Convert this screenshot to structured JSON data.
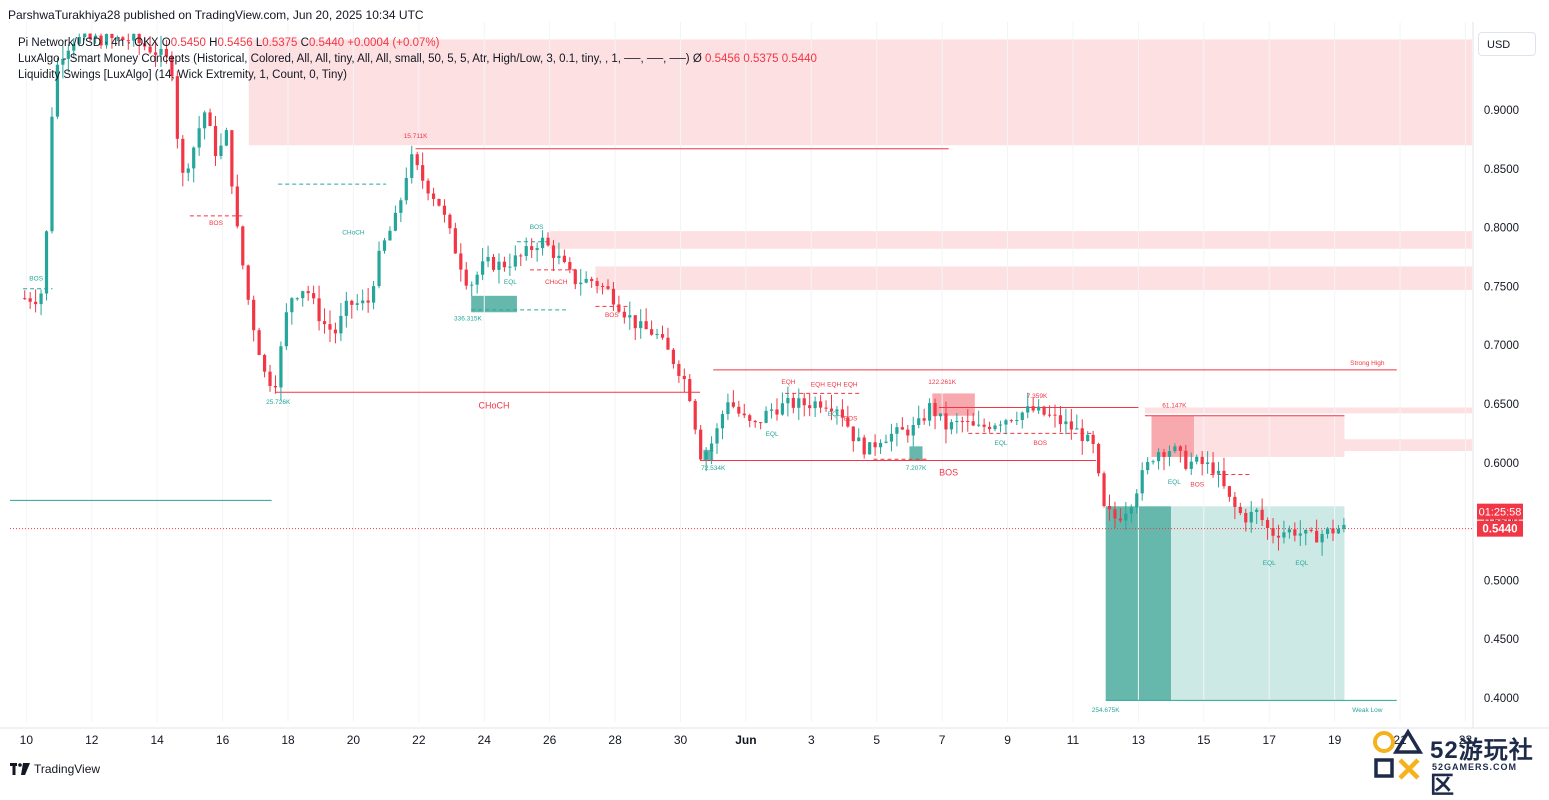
{
  "header": {
    "publish_line": "ParshwaTurakhiya28 published on TradingView.com, Jun 20, 2025 10:34 UTC"
  },
  "legend": {
    "symbol": "Pi Network/USD · 4h · OKX",
    "o_label": "O",
    "o": "0.5450",
    "h_label": "H",
    "h": "0.5456",
    "l_label": "L",
    "l": "0.5375",
    "c_label": "C",
    "c": "0.5440",
    "change": "+0.0004 (+0.07%)",
    "indicator1": "LuxAlgo - Smart Money Concepts (Historical, Colored, All, All, tiny, All, All, small, 50, 5, 5, Atr, High/Low, 3, 0.1, tiny, , 1, ──, ──, ──)",
    "indicator1_sep": "Ø",
    "indicator1_values": "0.5456  0.5375  0.5440",
    "indicator2": "Liquidity Swings [LuxAlgo] (14, Wick Extremity, 1, Count, 0, Tiny)"
  },
  "currency_button": "USD",
  "branding": "TradingView",
  "watermark": {
    "text": "52游玩社区",
    "sub": "52GAMERS.COM"
  },
  "colors": {
    "up": "#26a69a",
    "down": "#f23645",
    "bear_zone": "#fde0e2",
    "bull_zone": "#66b8ad",
    "bull_zone_light": "#cde9e6",
    "price_line": "#f23645"
  },
  "chart_data": {
    "type": "candlestick",
    "y_axis": {
      "ticks": [
        0.9,
        0.85,
        0.8,
        0.75,
        0.7,
        0.65,
        0.6,
        0.55,
        0.5,
        0.45,
        0.4
      ],
      "tick_labels": [
        "0.9000",
        "0.8500",
        "0.8000",
        "0.7500",
        "0.7000",
        "0.6500",
        "0.6000",
        "0.5500",
        "0.5000",
        "0.4500",
        "0.4000"
      ],
      "range": [
        0.385,
        0.96
      ],
      "side": "right"
    },
    "x_axis": {
      "tick_labels": [
        "10",
        "12",
        "14",
        "16",
        "18",
        "20",
        "22",
        "24",
        "26",
        "28",
        "30",
        "Jun",
        "3",
        "5",
        "7",
        "9",
        "11",
        "13",
        "15",
        "17",
        "19",
        "21",
        "23"
      ],
      "range_days": [
        9.5,
        24.2
      ]
    },
    "current_price": {
      "value": 0.544,
      "label": "0.5440",
      "countdown": "01:25:58"
    },
    "anchors": [
      [
        9.95,
        0.74
      ],
      [
        10.6,
        0.74
      ],
      [
        10.8,
        0.8
      ],
      [
        11.0,
        0.93
      ],
      [
        11.3,
        0.95
      ],
      [
        11.6,
        0.96
      ],
      [
        12.0,
        0.96
      ],
      [
        12.4,
        0.96
      ],
      [
        12.9,
        0.96
      ],
      [
        13.4,
        0.96
      ],
      [
        14.1,
        0.95
      ],
      [
        14.6,
        0.94
      ],
      [
        14.9,
        0.84
      ],
      [
        15.3,
        0.87
      ],
      [
        15.6,
        0.9
      ],
      [
        16.0,
        0.86
      ],
      [
        16.3,
        0.88
      ],
      [
        16.6,
        0.8
      ],
      [
        17.0,
        0.73
      ],
      [
        17.5,
        0.67
      ],
      [
        17.8,
        0.67
      ],
      [
        18.2,
        0.74
      ],
      [
        18.7,
        0.75
      ],
      [
        19.2,
        0.72
      ],
      [
        19.6,
        0.71
      ],
      [
        20.0,
        0.735
      ],
      [
        20.6,
        0.735
      ],
      [
        21.0,
        0.78
      ],
      [
        21.5,
        0.81
      ],
      [
        21.9,
        0.86
      ],
      [
        22.3,
        0.84
      ],
      [
        22.8,
        0.82
      ],
      [
        23.3,
        0.78
      ],
      [
        23.7,
        0.75
      ],
      [
        24.2,
        0.77
      ],
      [
        24.7,
        0.768
      ],
      [
        25.3,
        0.775
      ],
      [
        25.9,
        0.79
      ],
      [
        26.4,
        0.775
      ],
      [
        26.9,
        0.755
      ],
      [
        27.5,
        0.755
      ],
      [
        28.0,
        0.745
      ],
      [
        28.4,
        0.73
      ],
      [
        28.9,
        0.715
      ],
      [
        29.4,
        0.71
      ],
      [
        30.0,
        0.685
      ],
      [
        30.4,
        0.665
      ],
      [
        30.8,
        0.605
      ],
      [
        31.2,
        0.62
      ],
      [
        31.6,
        0.655
      ],
      [
        32.0,
        0.64
      ],
      [
        32.4,
        0.63
      ],
      [
        32.9,
        0.645
      ],
      [
        33.5,
        0.65
      ],
      [
        34.0,
        0.65
      ],
      [
        34.5,
        0.652
      ],
      [
        35.0,
        0.648
      ],
      [
        35.5,
        0.62
      ],
      [
        35.9,
        0.61
      ],
      [
        36.3,
        0.622
      ],
      [
        36.8,
        0.625
      ],
      [
        37.4,
        0.63
      ],
      [
        37.8,
        0.648
      ],
      [
        38.3,
        0.63
      ],
      [
        38.8,
        0.635
      ],
      [
        39.2,
        0.628
      ],
      [
        39.8,
        0.635
      ],
      [
        40.3,
        0.64
      ],
      [
        40.9,
        0.645
      ],
      [
        41.4,
        0.64
      ],
      [
        41.9,
        0.633
      ],
      [
        42.4,
        0.625
      ],
      [
        42.8,
        0.612
      ],
      [
        43.1,
        0.56
      ],
      [
        43.5,
        0.552
      ],
      [
        43.9,
        0.565
      ],
      [
        44.3,
        0.59
      ],
      [
        44.7,
        0.61
      ],
      [
        45.2,
        0.612
      ],
      [
        45.6,
        0.6
      ],
      [
        46.0,
        0.6
      ],
      [
        46.5,
        0.595
      ],
      [
        47.0,
        0.565
      ],
      [
        47.4,
        0.553
      ],
      [
        47.8,
        0.558
      ],
      [
        48.2,
        0.54
      ],
      [
        48.6,
        0.542
      ],
      [
        49.0,
        0.542
      ],
      [
        49.4,
        0.536
      ],
      [
        49.8,
        0.54
      ],
      [
        50.3,
        0.544
      ]
    ],
    "zones": [
      {
        "kind": "bear",
        "from_day": 16.8,
        "to_day": 24.2,
        "low": 0.87,
        "high": 0.96
      },
      {
        "kind": "bear",
        "from_day": 26.0,
        "to_day": 24.2,
        "low": 0.782,
        "high": 0.797
      },
      {
        "kind": "bear",
        "from_day": 27.4,
        "to_day": 24.2,
        "low": 0.747,
        "high": 0.767
      },
      {
        "kind": "bear",
        "from_day": 44.2,
        "to_day": 24.2,
        "low": 0.642,
        "high": 0.647
      },
      {
        "kind": "bear",
        "from_day": 45.5,
        "to_day": 24.2,
        "low": 0.61,
        "high": 0.62
      },
      {
        "kind": "bear_strong",
        "from_day": 37.7,
        "to_day": 39.0,
        "low": 0.64,
        "high": 0.659
      },
      {
        "kind": "bear_strong",
        "from_day": 44.4,
        "to_day": 45.7,
        "low": 0.605,
        "high": 0.64
      },
      {
        "kind": "bear",
        "from_day": 45.7,
        "to_day": 50.3,
        "low": 0.605,
        "high": 0.64
      },
      {
        "kind": "bull",
        "from_day": 23.6,
        "to_day": 25.0,
        "low": 0.728,
        "high": 0.742
      },
      {
        "kind": "bull",
        "from_day": 30.7,
        "to_day": 31.0,
        "low": 0.602,
        "high": 0.611
      },
      {
        "kind": "bull",
        "from_day": 37.0,
        "to_day": 37.4,
        "low": 0.602,
        "high": 0.614
      },
      {
        "kind": "bull",
        "from_day": 43.0,
        "to_day": 45.0,
        "low": 0.398,
        "high": 0.563
      },
      {
        "kind": "bull_light",
        "from_day": 45.0,
        "to_day": 50.3,
        "low": 0.398,
        "high": 0.563
      }
    ],
    "annotations": [
      {
        "text": "BOS",
        "day": 10.3,
        "price": 0.755,
        "color": "up"
      },
      {
        "text": "BOS",
        "day": 15.8,
        "price": 0.802,
        "color": "down"
      },
      {
        "text": "CHoCH",
        "day": 20.0,
        "price": 0.794,
        "color": "up"
      },
      {
        "text": "15.711K",
        "day": 21.9,
        "price": 0.876,
        "color": "down"
      },
      {
        "text": "BOS",
        "day": 25.6,
        "price": 0.799,
        "color": "up"
      },
      {
        "text": "EQL",
        "day": 24.8,
        "price": 0.752,
        "color": "up"
      },
      {
        "text": "CHoCH",
        "day": 26.2,
        "price": 0.752,
        "color": "down"
      },
      {
        "text": "BOS",
        "day": 27.9,
        "price": 0.724,
        "color": "down"
      },
      {
        "text": "336.315K",
        "day": 23.5,
        "price": 0.721,
        "color": "up"
      },
      {
        "text": "25.726K",
        "day": 17.7,
        "price": 0.65,
        "color": "up"
      },
      {
        "text": "CHoCH",
        "day": 24.3,
        "price": 0.646,
        "color": "down"
      },
      {
        "text": "72.534K",
        "day": 31.0,
        "price": 0.594,
        "color": "up"
      },
      {
        "text": "EQH",
        "day": 33.3,
        "price": 0.667,
        "color": "down"
      },
      {
        "text": "EQH",
        "day": 34.2,
        "price": 0.665,
        "color": "down"
      },
      {
        "text": "EQH",
        "day": 34.7,
        "price": 0.665,
        "color": "down"
      },
      {
        "text": "EQH",
        "day": 35.2,
        "price": 0.665,
        "color": "down"
      },
      {
        "text": "EQL",
        "day": 32.8,
        "price": 0.623,
        "color": "up"
      },
      {
        "text": "EQL",
        "day": 34.7,
        "price": 0.64,
        "color": "up"
      },
      {
        "text": "BOS",
        "day": 35.2,
        "price": 0.636,
        "color": "down"
      },
      {
        "text": "7.207K",
        "day": 37.2,
        "price": 0.594,
        "color": "up"
      },
      {
        "text": "BOS",
        "day": 38.2,
        "price": 0.589,
        "color": "down"
      },
      {
        "text": "122.261K",
        "day": 38.0,
        "price": 0.667,
        "color": "down"
      },
      {
        "text": "7.359K",
        "day": 40.9,
        "price": 0.655,
        "color": "down"
      },
      {
        "text": "EQL",
        "day": 39.8,
        "price": 0.615,
        "color": "up"
      },
      {
        "text": "BOS",
        "day": 41.0,
        "price": 0.615,
        "color": "down"
      },
      {
        "text": "61.147K",
        "day": 45.1,
        "price": 0.647,
        "color": "down"
      },
      {
        "text": "Strong High",
        "day": 51.0,
        "price": 0.683,
        "color": "down"
      },
      {
        "text": "EQL",
        "day": 45.1,
        "price": 0.582,
        "color": "up"
      },
      {
        "text": "BOS",
        "day": 45.8,
        "price": 0.58,
        "color": "down"
      },
      {
        "text": "EQL",
        "day": 48.0,
        "price": 0.513,
        "color": "up"
      },
      {
        "text": "EQL",
        "day": 49.0,
        "price": 0.513,
        "color": "up"
      },
      {
        "text": "254.675K",
        "day": 43.0,
        "price": 0.388,
        "color": "up"
      },
      {
        "text": "Weak Low",
        "day": 51.0,
        "price": 0.388,
        "color": "up"
      }
    ],
    "levels": [
      {
        "from_day": 21.9,
        "to_day": 38.2,
        "price": 0.867,
        "color": "down",
        "dashed": false
      },
      {
        "from_day": 17.6,
        "to_day": 30.6,
        "price": 0.66,
        "color": "down",
        "dashed": false
      },
      {
        "from_day": 31.0,
        "to_day": 51.9,
        "price": 0.679,
        "color": "down",
        "dashed": false
      },
      {
        "from_day": 30.6,
        "to_day": 42.7,
        "price": 0.602,
        "color": "down",
        "dashed": false
      },
      {
        "from_day": 37.9,
        "to_day": 44.0,
        "price": 0.647,
        "color": "down",
        "dashed": false
      },
      {
        "from_day": 44.2,
        "to_day": 50.3,
        "price": 0.64,
        "color": "down",
        "dashed": false
      },
      {
        "from_day": 43.0,
        "to_day": 51.9,
        "price": 0.398,
        "color": "up",
        "dashed": false
      },
      {
        "from_day": 9.5,
        "to_day": 17.5,
        "price": 0.568,
        "color": "up",
        "dashed": false
      },
      {
        "from_day": 9.9,
        "to_day": 10.8,
        "price": 0.748,
        "color": "up",
        "dashed": true
      },
      {
        "from_day": 15.0,
        "to_day": 16.6,
        "price": 0.81,
        "color": "down",
        "dashed": true
      },
      {
        "from_day": 17.7,
        "to_day": 21.0,
        "price": 0.837,
        "color": "up",
        "dashed": true
      },
      {
        "from_day": 23.6,
        "to_day": 26.5,
        "price": 0.73,
        "color": "up",
        "dashed": true
      },
      {
        "from_day": 25.0,
        "to_day": 25.9,
        "price": 0.788,
        "color": "up",
        "dashed": true
      },
      {
        "from_day": 25.4,
        "to_day": 26.8,
        "price": 0.764,
        "color": "down",
        "dashed": true
      },
      {
        "from_day": 27.4,
        "to_day": 28.4,
        "price": 0.733,
        "color": "down",
        "dashed": true
      },
      {
        "from_day": 33.2,
        "to_day": 35.5,
        "price": 0.659,
        "color": "down",
        "dashed": true
      },
      {
        "from_day": 35.9,
        "to_day": 37.6,
        "price": 0.603,
        "color": "down",
        "dashed": true
      },
      {
        "from_day": 38.8,
        "to_day": 42.6,
        "price": 0.625,
        "color": "down",
        "dashed": true
      },
      {
        "from_day": 46.2,
        "to_day": 47.4,
        "price": 0.59,
        "color": "down",
        "dashed": true
      }
    ]
  }
}
